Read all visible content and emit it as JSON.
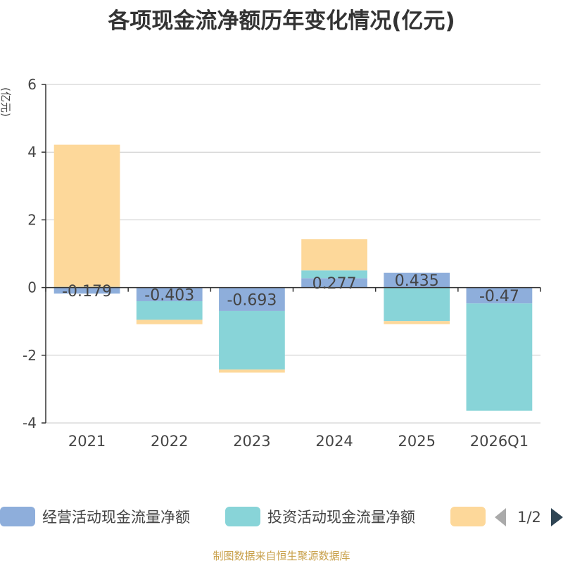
{
  "chart_data": {
    "type": "bar",
    "stacked": true,
    "title": "各项现金流净额历年变化情况(亿元)",
    "ylabel": "(亿元)",
    "xlabel": "",
    "categories": [
      "2021",
      "2022",
      "2023",
      "2024",
      "2025",
      "2026Q1"
    ],
    "ylim": [
      -4,
      6
    ],
    "yticks": [
      6,
      4,
      2,
      0,
      -2,
      -4
    ],
    "grid": true,
    "series": [
      {
        "name": "经营活动现金流量净额",
        "color": "#8eaedb",
        "values": [
          -0.179,
          -0.403,
          -0.693,
          0.277,
          0.435,
          -0.47
        ],
        "labels": [
          "-0.179",
          "-0.403",
          "-0.693",
          "0.277",
          "0.435",
          "-0.47"
        ]
      },
      {
        "name": "投资活动现金流量净额",
        "color": "#88d4d8",
        "values": [
          0.02,
          -0.55,
          -1.73,
          0.23,
          -0.99,
          -3.17
        ]
      },
      {
        "name": "",
        "color": "#fdd89a",
        "values": [
          4.2,
          -0.13,
          -0.09,
          0.92,
          -0.09,
          0
        ]
      }
    ],
    "legend": {
      "position": "bottom",
      "page": "1/2"
    }
  },
  "source": "制图数据来自恒生聚源数据库"
}
